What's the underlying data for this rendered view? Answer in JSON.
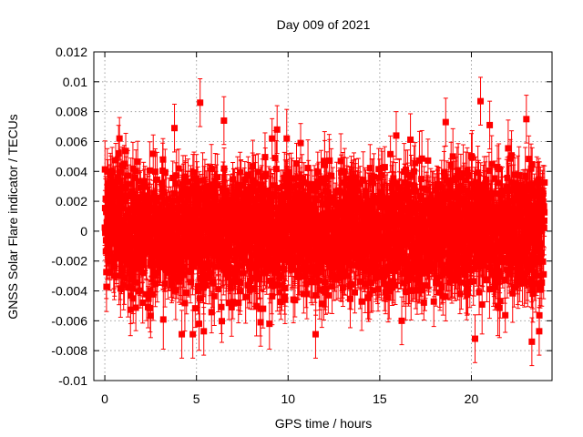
{
  "chart_data": {
    "type": "scatter",
    "title": "Day 009 of 2021",
    "xlabel": "GPS time / hours",
    "ylabel": "GNSS Solar Flare indicator / TECUs",
    "xlim": [
      -0.6,
      24.4
    ],
    "ylim": [
      -0.01,
      0.012
    ],
    "xticks": [
      0,
      5,
      10,
      15,
      20
    ],
    "xtick_labels": [
      "0",
      "5",
      "10",
      "15",
      "20"
    ],
    "yticks": [
      -0.01,
      -0.008,
      -0.006,
      -0.004,
      -0.002,
      0,
      0.002,
      0.004,
      0.006,
      0.008,
      0.01,
      0.012
    ],
    "ytick_labels": [
      "-0.01",
      "-0.008",
      "-0.006",
      "-0.004",
      "-0.002",
      "0",
      "0.002",
      "0.004",
      "0.006",
      "0.008",
      "0.01",
      "0.012"
    ],
    "grid": true,
    "legend": "none",
    "marker": "square",
    "error_bars": true,
    "color": "#ff0000",
    "series_note": "About 2880 dense noise samples (30 s cadence) over 24 h, centred near 0 with typical spread ±0.004 TECU and error bars of about ±0.0015 TECU; outliers listed below.",
    "series": [
      {
        "name": "GNSS solar flare indicator",
        "outliers": [
          {
            "x": 5.2,
            "y": 0.0086
          },
          {
            "x": 20.5,
            "y": 0.0087
          },
          {
            "x": 3.8,
            "y": 0.0069
          },
          {
            "x": 6.5,
            "y": 0.0074
          },
          {
            "x": 9.4,
            "y": 0.0068
          },
          {
            "x": 21.0,
            "y": 0.0071
          },
          {
            "x": 23.0,
            "y": 0.0075
          },
          {
            "x": 15.9,
            "y": 0.0064
          },
          {
            "x": 18.6,
            "y": 0.0073
          },
          {
            "x": 4.2,
            "y": -0.0069
          },
          {
            "x": 4.8,
            "y": -0.0069
          },
          {
            "x": 5.4,
            "y": -0.0067
          },
          {
            "x": 11.5,
            "y": -0.0069
          },
          {
            "x": 20.2,
            "y": -0.0072
          },
          {
            "x": 23.3,
            "y": -0.0074
          },
          {
            "x": 23.7,
            "y": -0.0067
          },
          {
            "x": 8.5,
            "y": -0.0061
          },
          {
            "x": 16.2,
            "y": -0.006
          }
        ]
      }
    ]
  }
}
